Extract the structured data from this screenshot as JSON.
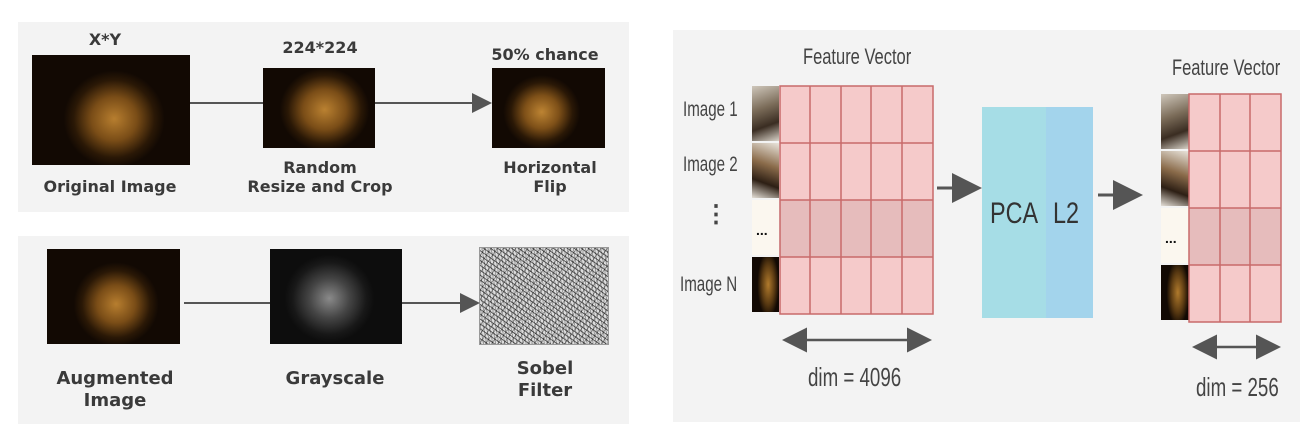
{
  "augmentation_panel": {
    "step1": {
      "top_label": "X*Y",
      "caption": "Original Image"
    },
    "step2": {
      "top_label": "224*224",
      "caption_line1": "Random",
      "caption_line2": "Resize and Crop"
    },
    "step3": {
      "top_label": "50% chance",
      "caption_line1": "Horizontal",
      "caption_line2": "Flip"
    }
  },
  "filter_panel": {
    "step1": {
      "caption_line1": "Augmented",
      "caption_line2": "Image"
    },
    "step2": {
      "caption": "Grayscale"
    },
    "step3": {
      "caption_line1": "Sobel",
      "caption_line2": "Filter"
    }
  },
  "pca_panel": {
    "left": {
      "title": "Feature Vector",
      "rows": [
        "Image 1",
        "Image 2",
        "⋮",
        "Image N"
      ],
      "dim_label": "dim = 4096"
    },
    "pca_box": {
      "label_a": "PCA",
      "label_b": "L2"
    },
    "right": {
      "title": "Feature Vector",
      "dim_label": "dim = 256"
    },
    "ellipsis_thumb": "..."
  },
  "colors": {
    "grid_fill": "#f5caca",
    "grid_fill_dark": "#e6bcbc",
    "grid_line": "#c86a6a",
    "pca_color": "#a6dde6",
    "l2_color": "#a3d4ec",
    "arrow": "#555555"
  }
}
